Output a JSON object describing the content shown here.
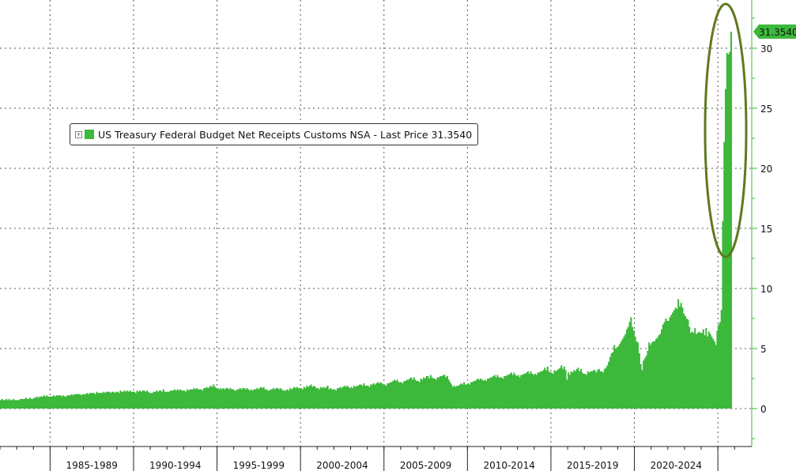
{
  "chart_data": {
    "type": "bar",
    "title": "",
    "xlabel": "",
    "ylabel": "",
    "frequency": "monthly",
    "x_start": "1982-01",
    "x_end": "2025-10",
    "ylim": [
      -3,
      34
    ],
    "y_ticks": [
      0,
      5,
      10,
      15,
      20,
      25,
      30
    ],
    "x_tick_labels": [
      "1985-1989",
      "1990-1994",
      "1995-1999",
      "2000-2004",
      "2005-2009",
      "2010-2014",
      "2015-2019",
      "2020-2024"
    ],
    "grid": true,
    "y_axis_side": "right",
    "legend": {
      "placement": "top-left",
      "text": "US Treasury Federal Budget Net Receipts Customs NSA - Last Price 31.3540"
    },
    "last_price_label": "31.3540",
    "annotation": "ellipse highlighting 2025 surge",
    "colors": {
      "bars": "#3cb83a",
      "ellipse": "#5f7a1c",
      "axis": "#3cb83a"
    },
    "series": [
      {
        "values": [
          0.7,
          0.8,
          0.7,
          0.7,
          0.8,
          0.7,
          0.8,
          0.7,
          0.7,
          0.8,
          0.7,
          0.7,
          0.7,
          0.7,
          0.8,
          0.8,
          0.8,
          0.8,
          0.9,
          0.8,
          0.8,
          0.9,
          0.8,
          0.8,
          0.9,
          0.9,
          1.0,
          0.9,
          1.0,
          1.0,
          1.0,
          1.1,
          1.0,
          1.1,
          1.0,
          1.0,
          1.0,
          1.0,
          1.1,
          1.0,
          1.1,
          1.1,
          1.1,
          1.1,
          1.0,
          1.1,
          1.0,
          1.0,
          1.1,
          1.1,
          1.1,
          1.2,
          1.1,
          1.2,
          1.2,
          1.2,
          1.2,
          1.2,
          1.1,
          1.2,
          1.2,
          1.2,
          1.3,
          1.2,
          1.3,
          1.3,
          1.3,
          1.3,
          1.2,
          1.4,
          1.3,
          1.3,
          1.3,
          1.3,
          1.4,
          1.3,
          1.4,
          1.4,
          1.4,
          1.3,
          1.4,
          1.4,
          1.3,
          1.4,
          1.4,
          1.3,
          1.5,
          1.4,
          1.4,
          1.5,
          1.4,
          1.5,
          1.4,
          1.5,
          1.4,
          1.4,
          1.4,
          1.3,
          1.5,
          1.4,
          1.5,
          1.4,
          1.5,
          1.5,
          1.4,
          1.5,
          1.4,
          1.3,
          1.3,
          1.3,
          1.4,
          1.4,
          1.5,
          1.4,
          1.5,
          1.5,
          1.4,
          1.6,
          1.4,
          1.4,
          1.4,
          1.4,
          1.5,
          1.5,
          1.5,
          1.6,
          1.5,
          1.6,
          1.5,
          1.6,
          1.5,
          1.5,
          1.5,
          1.4,
          1.6,
          1.5,
          1.6,
          1.6,
          1.6,
          1.7,
          1.6,
          1.7,
          1.6,
          1.6,
          1.6,
          1.5,
          1.7,
          1.7,
          1.8,
          1.7,
          1.8,
          1.9,
          1.8,
          2.0,
          1.8,
          1.7,
          1.7,
          1.6,
          1.7,
          1.6,
          1.7,
          1.6,
          1.7,
          1.7,
          1.6,
          1.7,
          1.6,
          1.6,
          1.5,
          1.5,
          1.6,
          1.6,
          1.7,
          1.6,
          1.7,
          1.7,
          1.6,
          1.7,
          1.6,
          1.5,
          1.6,
          1.5,
          1.6,
          1.6,
          1.7,
          1.6,
          1.7,
          1.8,
          1.7,
          1.8,
          1.6,
          1.6,
          1.5,
          1.5,
          1.6,
          1.6,
          1.7,
          1.6,
          1.7,
          1.7,
          1.6,
          1.7,
          1.6,
          1.5,
          1.5,
          1.5,
          1.6,
          1.5,
          1.7,
          1.6,
          1.7,
          1.8,
          1.7,
          1.8,
          1.7,
          1.7,
          1.7,
          1.6,
          1.8,
          1.7,
          1.9,
          1.8,
          1.9,
          2.0,
          1.8,
          1.9,
          1.8,
          1.7,
          1.7,
          1.6,
          1.8,
          1.7,
          1.8,
          1.7,
          1.8,
          1.9,
          1.6,
          1.7,
          1.6,
          1.6,
          1.6,
          1.5,
          1.7,
          1.7,
          1.8,
          1.7,
          1.8,
          1.9,
          1.8,
          1.9,
          1.8,
          1.7,
          1.8,
          1.7,
          1.9,
          1.8,
          1.9,
          1.9,
          2.0,
          2.0,
          1.9,
          2.1,
          1.9,
          1.9,
          1.9,
          1.8,
          2.0,
          2.0,
          2.1,
          2.0,
          2.1,
          2.2,
          2.1,
          2.2,
          2.1,
          2.0,
          2.0,
          1.9,
          2.1,
          2.1,
          2.2,
          2.2,
          2.3,
          2.4,
          2.3,
          2.4,
          2.2,
          2.2,
          2.2,
          2.1,
          2.3,
          2.3,
          2.4,
          2.4,
          2.5,
          2.6,
          2.4,
          2.6,
          2.4,
          2.3,
          2.3,
          2.2,
          2.5,
          2.4,
          2.6,
          2.5,
          2.7,
          2.7,
          2.5,
          2.8,
          2.6,
          2.5,
          2.5,
          2.4,
          2.6,
          2.6,
          2.7,
          2.7,
          2.8,
          2.8,
          2.6,
          2.7,
          2.4,
          2.2,
          2.0,
          1.8,
          1.9,
          1.8,
          1.9,
          1.9,
          2.0,
          2.1,
          2.0,
          2.2,
          2.0,
          2.0,
          2.1,
          2.0,
          2.2,
          2.2,
          2.3,
          2.3,
          2.4,
          2.5,
          2.4,
          2.5,
          2.4,
          2.3,
          2.4,
          2.3,
          2.5,
          2.5,
          2.6,
          2.6,
          2.7,
          2.8,
          2.6,
          2.8,
          2.6,
          2.6,
          2.6,
          2.5,
          2.7,
          2.7,
          2.8,
          2.8,
          2.9,
          3.0,
          2.8,
          3.0,
          2.8,
          2.7,
          2.8,
          2.6,
          2.8,
          2.8,
          2.9,
          2.9,
          3.0,
          3.1,
          2.9,
          3.1,
          2.9,
          2.8,
          2.9,
          2.8,
          3.0,
          3.0,
          3.1,
          3.1,
          3.2,
          3.4,
          3.2,
          3.5,
          3.1,
          3.0,
          3.0,
          2.9,
          3.2,
          3.1,
          3.2,
          3.3,
          3.4,
          3.6,
          3.3,
          3.5,
          3.2,
          2.4,
          3.0,
          2.8,
          3.1,
          3.0,
          3.2,
          3.1,
          3.3,
          3.4,
          3.1,
          3.3,
          3.0,
          2.9,
          2.9,
          2.8,
          3.1,
          3.0,
          3.1,
          3.1,
          3.2,
          3.2,
          3.0,
          3.2,
          3.3,
          3.1,
          3.1,
          3.0,
          3.3,
          3.4,
          3.6,
          3.9,
          4.3,
          4.6,
          4.7,
          5.3,
          5.0,
          5.1,
          5.2,
          5.4,
          5.6,
          5.8,
          6.0,
          6.2,
          6.6,
          6.8,
          7.2,
          7.6,
          6.8,
          6.5,
          6.0,
          5.6,
          5.5,
          4.6,
          3.7,
          3.2,
          4.0,
          4.2,
          4.4,
          4.8,
          5.5,
          5.3,
          5.5,
          5.6,
          5.6,
          5.8,
          5.9,
          6.1,
          6.2,
          6.6,
          7.0,
          7.2,
          7.5,
          7.3,
          7.3,
          7.6,
          7.8,
          8.0,
          8.2,
          8.4,
          8.3,
          9.1,
          8.5,
          8.8,
          8.4,
          7.9,
          7.7,
          7.5,
          7.4,
          6.8,
          6.3,
          6.4,
          6.3,
          6.7,
          6.2,
          6.3,
          6.4,
          6.3,
          6.3,
          6.6,
          6.1,
          6.7,
          6.0,
          6.4,
          6.2,
          6.0,
          5.8,
          5.6,
          5.3,
          6.5,
          7.0,
          7.2,
          8.2,
          15.6,
          22.2,
          26.6,
          29.6,
          29.5,
          29.7,
          31.354
        ]
      }
    ]
  }
}
